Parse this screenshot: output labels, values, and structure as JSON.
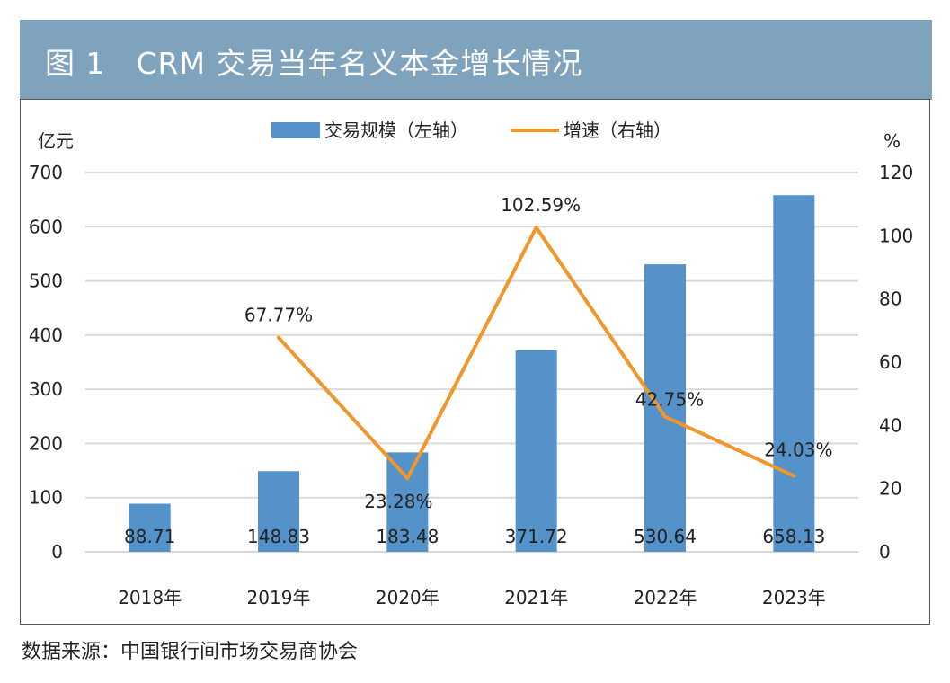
{
  "header": {
    "title": "图 1　CRM 交易当年名义本金增长情况"
  },
  "source": "数据来源：中国银行间市场交易商协会",
  "colors": {
    "header_bg": "#7fa3bd",
    "bar": "#5592c9",
    "line": "#f0962a",
    "grid": "#d9d9d9"
  },
  "chart_data": {
    "type": "bar+line",
    "title": "CRM 交易当年名义本金增长情况",
    "categories": [
      "2018年",
      "2019年",
      "2020年",
      "2021年",
      "2022年",
      "2023年"
    ],
    "series": [
      {
        "name": "交易规模（左轴）",
        "type": "bar",
        "axis": "left",
        "values": [
          88.71,
          148.83,
          183.48,
          371.72,
          530.64,
          658.13
        ],
        "labels": [
          "88.71",
          "148.83",
          "183.48",
          "371.72",
          "530.64",
          "658.13"
        ]
      },
      {
        "name": "增速（右轴）",
        "type": "line",
        "axis": "right",
        "values": [
          null,
          67.77,
          23.28,
          102.59,
          42.75,
          24.03
        ],
        "labels": [
          "",
          "67.77%",
          "23.28%",
          "102.59%",
          "42.75%",
          "24.03%"
        ]
      }
    ],
    "y_left": {
      "label": "亿元",
      "min": 0,
      "max": 700,
      "ticks": [
        0,
        100,
        200,
        300,
        400,
        500,
        600,
        700
      ]
    },
    "y_right": {
      "label": "%",
      "min": 0,
      "max": 120,
      "ticks": [
        0,
        20,
        40,
        60,
        80,
        100,
        120
      ]
    },
    "legend_position": "top-center",
    "grid": true
  }
}
